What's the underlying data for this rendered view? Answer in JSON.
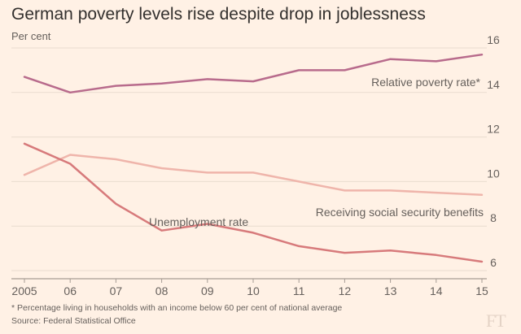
{
  "header": {
    "title": "German poverty levels rise despite drop in joblessness",
    "subtitle": "Per cent"
  },
  "footer": {
    "note": "* Percentage living in households with an income below 60 per cent of national average",
    "source": "Source: Federal Statistical Office",
    "logo": "FT"
  },
  "chart_data": {
    "type": "line",
    "title": "German poverty levels rise despite drop in joblessness",
    "ylabel": "Per cent",
    "xlabel": "",
    "x": [
      2005,
      2006,
      2007,
      2008,
      2009,
      2010,
      2011,
      2012,
      2013,
      2014,
      2015
    ],
    "x_tick_labels": [
      "2005",
      "06",
      "07",
      "08",
      "09",
      "10",
      "11",
      "12",
      "13",
      "14",
      "15"
    ],
    "y_ticks": [
      6,
      8,
      10,
      12,
      14,
      16
    ],
    "y_tick_labels": [
      "6",
      "8",
      "10",
      "12",
      "14",
      "16"
    ],
    "ylim": [
      5.5,
      16
    ],
    "grid": true,
    "series": [
      {
        "name": "Relative poverty rate*",
        "color": "#b86b8c",
        "values": [
          14.7,
          14.0,
          14.3,
          14.4,
          14.6,
          14.5,
          15.0,
          15.0,
          15.5,
          15.4,
          15.7
        ]
      },
      {
        "name": "Receiving social security benefits",
        "color": "#efb5ab",
        "values": [
          10.3,
          11.2,
          11.0,
          10.6,
          10.4,
          10.4,
          10.0,
          9.6,
          9.6,
          9.5,
          9.4
        ]
      },
      {
        "name": "Unemployment rate",
        "color": "#d77a7b",
        "values": [
          11.7,
          10.8,
          9.0,
          7.8,
          8.1,
          7.7,
          7.1,
          6.8,
          6.9,
          6.7,
          6.4
        ]
      }
    ]
  }
}
